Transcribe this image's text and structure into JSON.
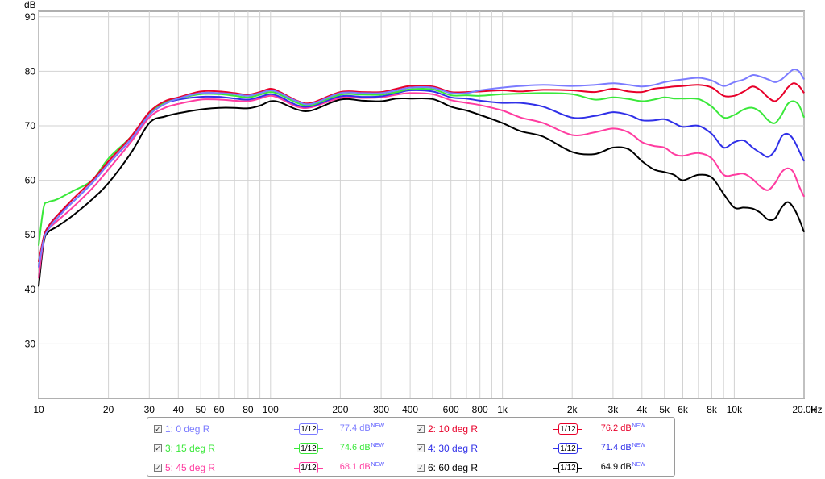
{
  "chart_data": {
    "type": "line",
    "ylabel": "dB",
    "xunit": "Hz",
    "xscale": "log",
    "xlim": [
      10,
      20000
    ],
    "ylim": [
      20,
      91
    ],
    "grid": true,
    "legend_position": "bottom",
    "yticks": [
      30,
      40,
      50,
      60,
      70,
      80,
      90
    ],
    "yticklabels": [
      "30",
      "40",
      "50",
      "60",
      "70",
      "80",
      "90"
    ],
    "xticks": [
      10,
      20,
      30,
      40,
      50,
      60,
      80,
      100,
      200,
      300,
      400,
      600,
      800,
      1000,
      2000,
      3000,
      4000,
      5000,
      6000,
      8000,
      10000,
      20000
    ],
    "xticklabels": [
      "10",
      "20",
      "30",
      "40",
      "50",
      "60",
      "80",
      "100",
      "200",
      "300",
      "400",
      "600",
      "800",
      "1k",
      "2k",
      "3k",
      "4k",
      "5k",
      "6k",
      "8k",
      "10k",
      "20.0k"
    ],
    "xgrid": [
      10,
      20,
      30,
      40,
      50,
      60,
      70,
      80,
      90,
      100,
      200,
      300,
      400,
      500,
      600,
      700,
      800,
      900,
      1000,
      2000,
      3000,
      4000,
      5000,
      6000,
      7000,
      8000,
      9000,
      10000,
      20000
    ],
    "x": [
      10,
      10.5,
      11,
      12,
      14,
      17,
      20,
      25,
      30,
      35,
      40,
      50,
      60,
      70,
      80,
      90,
      100,
      110,
      130,
      150,
      200,
      250,
      300,
      350,
      400,
      500,
      600,
      700,
      800,
      1000,
      1200,
      1500,
      2000,
      2500,
      3000,
      3500,
      4000,
      4500,
      5000,
      5500,
      6000,
      7000,
      8000,
      9000,
      10000,
      11000,
      12000,
      13000,
      14000,
      15000,
      16000,
      17000,
      18000,
      19000,
      20000
    ],
    "series": [
      {
        "name": "1: 0 deg R",
        "color": "#7b7bff",
        "values": [
          44,
          49,
          51,
          53,
          56,
          59.5,
          63,
          67.5,
          72,
          74,
          75,
          76,
          76,
          75.8,
          75.5,
          76,
          76.5,
          76,
          74.5,
          74,
          76,
          76,
          76,
          76.5,
          77,
          77,
          76,
          76,
          76.5,
          77,
          77.3,
          77.5,
          77.3,
          77.5,
          77.8,
          77.5,
          77.2,
          77.5,
          78,
          78.3,
          78.5,
          78.8,
          78.3,
          77.3,
          78,
          78.5,
          79.3,
          79,
          78.5,
          78,
          78.5,
          79.5,
          80.3,
          80,
          78.5
        ],
        "smoothing": "1/12",
        "level": "77.4 dB",
        "badge": "NEW"
      },
      {
        "name": "2: 10 deg R",
        "color": "#e8002a",
        "values": [
          45,
          49.5,
          51.5,
          53.5,
          56.5,
          60,
          63.5,
          68,
          72.5,
          74.5,
          75.2,
          76.3,
          76.3,
          76,
          75.7,
          76.2,
          76.8,
          76.2,
          74.6,
          74.2,
          76.2,
          76.2,
          76.2,
          76.8,
          77.3,
          77.2,
          76.2,
          76.2,
          76.3,
          76.5,
          76.3,
          76.6,
          76.5,
          76.2,
          76.8,
          76.3,
          76.2,
          76.8,
          77,
          77.2,
          77.3,
          77.5,
          77,
          75.5,
          75.5,
          76.3,
          77.2,
          76.5,
          75.2,
          74.5,
          75.5,
          77,
          77.8,
          77.3,
          76
        ],
        "smoothing": "1/12",
        "level": "76.2 dB",
        "badge": "NEW"
      },
      {
        "name": "3: 15 deg R",
        "color": "#3ae83a",
        "values": [
          48,
          55,
          56,
          56.5,
          58,
          60,
          64,
          68,
          72.3,
          74.3,
          75,
          75.8,
          75.8,
          75.5,
          75.2,
          75.7,
          76.2,
          75.7,
          74.2,
          73.8,
          75.7,
          75.7,
          75.7,
          76.2,
          76.7,
          76.7,
          75.6,
          75.6,
          75.5,
          75.8,
          75.9,
          76,
          75.8,
          74.8,
          75.2,
          74.9,
          74.5,
          74.8,
          75.2,
          75,
          75,
          74.9,
          73.5,
          71.5,
          72,
          73,
          73.3,
          72.5,
          71,
          70.5,
          72,
          74,
          74.5,
          73.8,
          71.5
        ],
        "smoothing": "1/12",
        "level": "74.6 dB",
        "badge": "NEW"
      },
      {
        "name": "4: 30 deg R",
        "color": "#3030e8",
        "values": [
          44,
          49.5,
          51.5,
          53.5,
          56,
          59.5,
          63,
          67.5,
          72,
          74,
          74.8,
          75.3,
          75.3,
          75,
          74.8,
          75.3,
          75.8,
          75.3,
          73.8,
          73.6,
          75.4,
          75.3,
          75.4,
          76,
          76.5,
          76.3,
          75.2,
          75,
          74.6,
          74.2,
          74.2,
          73.5,
          71.5,
          71.8,
          72.5,
          72,
          71,
          71,
          71.2,
          70.5,
          69.8,
          70,
          68.5,
          66,
          67,
          67.3,
          66,
          65,
          64.3,
          65.5,
          68,
          68.5,
          67.5,
          65.5,
          63.5
        ],
        "smoothing": "1/12",
        "level": "71.4 dB",
        "badge": "NEW"
      },
      {
        "name": "5: 45 deg R",
        "color": "#ff3ca0",
        "values": [
          42,
          49,
          51,
          52.5,
          55,
          58.5,
          62,
          67,
          71.5,
          73.3,
          74,
          74.8,
          74.8,
          74.6,
          74.5,
          75,
          75.5,
          75,
          73.5,
          73.4,
          75.1,
          75.1,
          75.2,
          75.7,
          76,
          75.8,
          74.7,
          74.2,
          73.8,
          72.8,
          71.5,
          70.5,
          68.3,
          68.8,
          69.5,
          68.8,
          67,
          66.3,
          66,
          64.8,
          64.5,
          65,
          64,
          61,
          61,
          61.2,
          60.2,
          58.8,
          58.2,
          59.5,
          61.5,
          62.2,
          61.5,
          59,
          57
        ],
        "smoothing": "1/12",
        "level": "68.1 dB",
        "badge": "NEW"
      },
      {
        "name": "6: 60 deg R",
        "color": "#000000",
        "values": [
          40.5,
          48.5,
          50.5,
          51.5,
          53.5,
          56.5,
          59.5,
          65,
          70.5,
          71.7,
          72.3,
          73,
          73.3,
          73.3,
          73.2,
          73.7,
          74.5,
          74.3,
          73,
          72.8,
          74.8,
          74.6,
          74.5,
          75,
          75,
          74.9,
          73.5,
          72.8,
          72,
          70.5,
          69,
          68,
          65.2,
          64.8,
          66,
          65.7,
          63.5,
          62,
          61.5,
          61,
          60,
          61,
          60.5,
          57.5,
          55,
          55,
          54.8,
          54,
          52.8,
          53,
          55,
          56,
          55,
          53,
          50.5
        ],
        "smoothing": "1/12",
        "level": "64.9 dB",
        "badge": "NEW"
      }
    ]
  }
}
